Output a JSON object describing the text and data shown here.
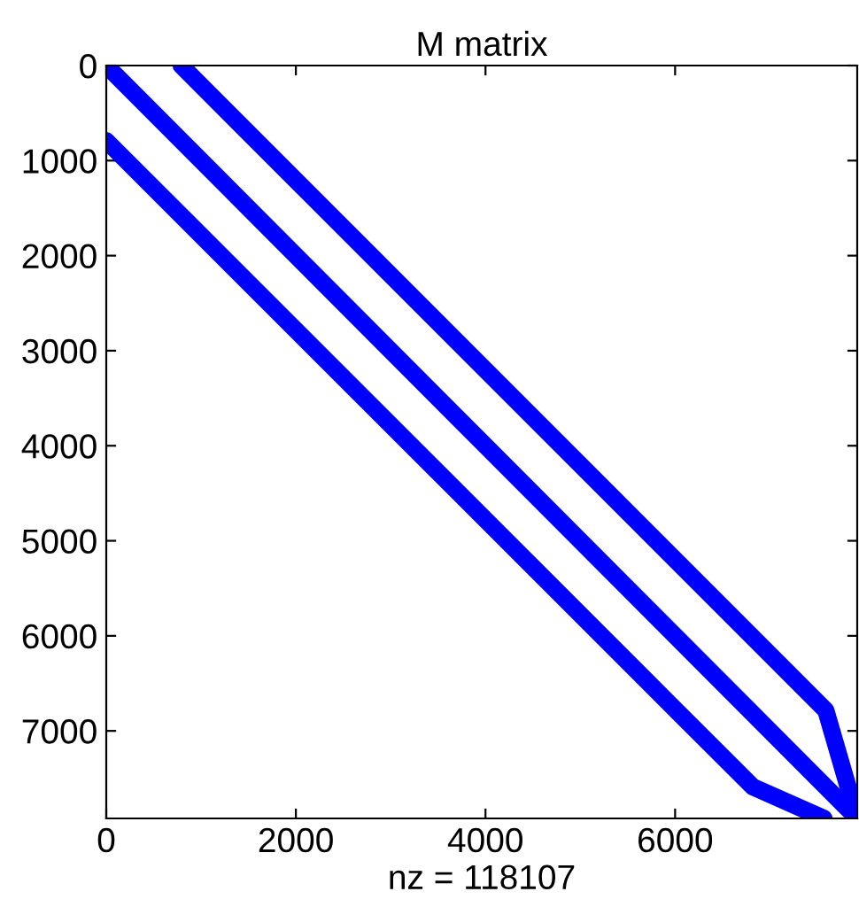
{
  "chart_data": {
    "type": "line",
    "title": "M matrix",
    "xlabel": "nz = 118107",
    "series": [
      {
        "color": "#0000ff",
        "x": [
          790,
          7590,
          7921
        ],
        "values": [
          0,
          6785,
          7921
        ]
      },
      {
        "color": "#0000ff",
        "x": [
          0,
          7921
        ],
        "values": [
          0,
          7921
        ]
      },
      {
        "color": "#0000ff",
        "x": [
          0,
          6820,
          7570
        ],
        "values": [
          790,
          7590,
          7921
        ]
      }
    ],
    "xlim": [
      0,
      7921
    ],
    "ylim": [
      7921,
      0
    ],
    "xticks": [
      0,
      2000,
      4000,
      6000
    ],
    "yticks": [
      0,
      1000,
      2000,
      3000,
      4000,
      5000,
      6000,
      7000
    ],
    "grid": false,
    "marker": "none",
    "line_style": "solid"
  }
}
